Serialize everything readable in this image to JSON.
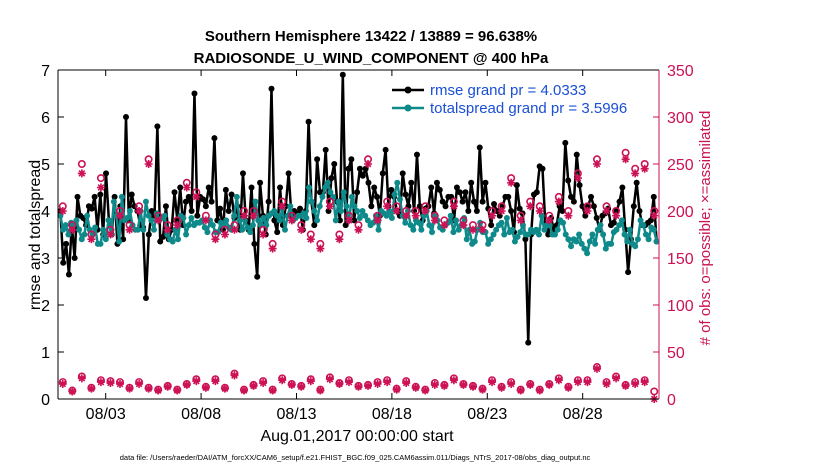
{
  "chart_data": {
    "type": "line",
    "title": "Southern Hemisphere 13422 / 13889 = 96.638%",
    "subtitle": "RADIOSONDE_U_WIND_COMPONENT @ 400 hPa",
    "xlabel": "Aug.01,2017 00:00:00 start",
    "ylabel": "rmse and totalspread",
    "ylabel_right": "# of obs: o=possible; ×=assimilated",
    "xlim": [
      0,
      31.5
    ],
    "ylim": [
      0,
      7
    ],
    "ylim_right": [
      0,
      350
    ],
    "x_ticks": [
      2.5,
      7.5,
      12.5,
      17.5,
      22.5,
      27.5
    ],
    "x_tick_labels": [
      "08/03",
      "08/08",
      "08/13",
      "08/18",
      "08/23",
      "08/28"
    ],
    "y_ticks": [
      0,
      1,
      2,
      3,
      4,
      5,
      6,
      7
    ],
    "y_tick_labels": [
      "0",
      "1",
      "2",
      "3",
      "4",
      "5",
      "6",
      "7"
    ],
    "y_ticks_right": [
      0,
      50,
      100,
      150,
      200,
      250,
      300,
      350
    ],
    "y_tick_labels_right": [
      "0",
      "50",
      "100",
      "150",
      "200",
      "250",
      "300",
      "350"
    ],
    "footnote": "data file: /Users/raeder/DAI/ATM_forcXX/CAM6_setup/f.e21.FHIST_BGC.f09_025.CAM6assim.011/Diags_NTrS_2017-08/obs_diag_output.nc",
    "legend": [
      "rmse grand pr = 4.0333",
      "totalspread grand pr = 3.5996"
    ],
    "legend_position": "top-right",
    "series": [
      {
        "name": "rmse grand pr = 4.0333",
        "color": "#000000",
        "values": [
          4.0,
          2.9,
          3.3,
          2.65,
          3.7,
          3.0,
          4.3,
          3.9,
          3.85,
          3.7,
          4.1,
          4.05,
          4.3,
          3.6,
          4.35,
          3.5,
          4.8,
          3.8,
          3.5,
          4.3,
          3.3,
          4.1,
          3.4,
          6.0,
          3.8,
          4.35,
          4.1,
          4.0,
          3.7,
          3.65,
          2.15,
          3.5,
          4.0,
          3.9,
          5.8,
          3.35,
          3.45,
          4.1,
          3.4,
          3.6,
          4.4,
          3.8,
          4.5,
          3.7,
          4.2,
          4.3,
          4.0,
          6.5,
          3.9,
          4.3,
          4.25,
          4.1,
          4.5,
          4.2,
          5.55,
          3.8,
          4.05,
          3.6,
          4.45,
          4.0,
          4.35,
          3.85,
          4.1,
          3.6,
          4.8,
          3.8,
          3.6,
          4.5,
          3.3,
          2.6,
          4.6,
          3.9,
          3.5,
          4.2,
          6.6,
          3.8,
          3.55,
          4.5,
          3.7,
          4.1,
          4.8,
          3.9,
          4.0,
          3.95,
          4.05,
          3.6,
          4.0,
          5.9,
          4.2,
          3.7,
          5.1,
          4.4,
          4.4,
          5.3,
          4.0,
          4.7,
          5.0,
          4.2,
          3.8,
          6.9,
          3.7,
          4.9,
          5.1,
          3.8,
          4.4,
          4.9,
          4.75,
          4.9,
          4.6,
          4.1,
          4.5,
          4.3,
          3.9,
          4.8,
          5.3,
          4.1,
          4.45,
          4.3,
          4.0,
          3.9,
          4.8,
          4.35,
          4.1,
          4.6,
          4.0,
          5.2,
          4.1,
          3.8,
          4.05,
          4.1,
          4.5,
          3.95,
          4.6,
          4.45,
          4.2,
          4.1,
          4.3,
          4.3,
          3.8,
          4.5,
          4.4,
          4.2,
          4.4,
          4.0,
          4.6,
          4.2,
          4.0,
          5.35,
          4.2,
          4.6,
          4.05,
          3.7,
          4.15,
          4.0,
          3.9,
          4.1,
          4.3,
          4.3,
          4.0,
          3.55,
          4.55,
          4.05,
          3.95,
          3.4,
          1.2,
          3.5,
          4.35,
          4.4,
          4.95,
          4.9,
          3.7,
          3.5,
          3.85,
          3.6,
          3.7,
          4.1,
          4.0,
          5.45,
          4.65,
          4.3,
          4.2,
          5.2,
          4.55,
          4.1,
          3.9,
          4.1,
          4.3,
          4.1,
          3.85,
          3.6,
          3.9,
          3.95,
          4.05,
          3.7,
          3.75,
          4.0,
          4.2,
          4.5,
          3.6,
          2.7,
          3.4,
          4.1,
          4.6,
          4.0,
          3.7,
          3.7,
          3.75,
          3.8,
          4.3,
          3.35
        ],
        "markers": "filled-circle"
      },
      {
        "name": "totalspread grand pr = 3.5996",
        "color": "#0e8a8a",
        "values": [
          3.9,
          3.6,
          3.7,
          3.5,
          3.75,
          3.7,
          3.8,
          3.6,
          3.4,
          3.5,
          3.9,
          3.6,
          3.5,
          3.65,
          3.3,
          3.3,
          3.6,
          3.4,
          3.8,
          3.5,
          4.2,
          3.9,
          3.35,
          4.3,
          3.8,
          3.85,
          4.0,
          3.7,
          3.6,
          3.6,
          4.0,
          3.6,
          4.2,
          3.9,
          3.8,
          3.6,
          3.95,
          3.8,
          3.85,
          3.9,
          3.5,
          3.4,
          3.35,
          3.6,
          3.4,
          3.9,
          3.85,
          3.5,
          3.7,
          3.85,
          3.7,
          3.75,
          3.75,
          3.8,
          3.65,
          3.55,
          3.8,
          3.7,
          3.55,
          3.55,
          3.75,
          3.7,
          3.8,
          3.65,
          3.6,
          3.9,
          4.3,
          3.8,
          3.6,
          3.8,
          3.65,
          3.55,
          3.7,
          4.2,
          3.8,
          3.7,
          3.85,
          3.7,
          3.9,
          3.95,
          4.0,
          3.9,
          3.8,
          4.05,
          3.6,
          3.9,
          4.1,
          3.8,
          3.85,
          3.9,
          3.9,
          3.95,
          3.85,
          4.5,
          4.2,
          4.0,
          3.8,
          4.1,
          4.3,
          4.5,
          4.6,
          4.4,
          4.3,
          3.8,
          4.2,
          4.0,
          4.4,
          4.1,
          3.8,
          4.3,
          4.1,
          4.0,
          3.85,
          4.0,
          3.9,
          3.8,
          3.7,
          3.75,
          3.9,
          3.6,
          4.0,
          3.95,
          3.9,
          4.0,
          3.85,
          4.35,
          4.6,
          4.25,
          3.9,
          3.75,
          4.0,
          3.7,
          3.6,
          3.8,
          3.75,
          3.6,
          3.9,
          4.0,
          3.7,
          3.55,
          3.9,
          3.8,
          3.65,
          3.6,
          3.7,
          3.75,
          3.9,
          3.55,
          3.8,
          3.6,
          3.7,
          3.85,
          3.4,
          3.6,
          3.3,
          3.35,
          3.6,
          3.75,
          3.55,
          3.55,
          3.3,
          3.4,
          3.5,
          3.6,
          3.7,
          3.75,
          3.5,
          3.85,
          3.55,
          3.6,
          3.35,
          3.45,
          3.55,
          3.7,
          3.5,
          3.5,
          3.6,
          3.55,
          3.6,
          3.5,
          3.9,
          3.6,
          3.7,
          3.7,
          3.5,
          3.5,
          3.6,
          3.8,
          3.75,
          3.5,
          3.4,
          3.25,
          3.4,
          3.35,
          3.5,
          3.3,
          3.2,
          3.1,
          3.35,
          3.5,
          3.3,
          3.6,
          3.7,
          3.5,
          3.2,
          3.3,
          3.3,
          3.55,
          3.6,
          3.7,
          3.8,
          3.5,
          3.35,
          3.6,
          3.3,
          3.25,
          3.4,
          3.8,
          3.7,
          3.5,
          3.4,
          3.65,
          3.6,
          3.35
        ],
        "markers": "filled-circle"
      },
      {
        "name": "obs possible",
        "color": "#cc1155",
        "axis": "right",
        "x": [
          0.25,
          0.75,
          1.25,
          1.75,
          2.25,
          2.75,
          3.25,
          3.75,
          4.25,
          4.75,
          5.25,
          5.75,
          6.25,
          6.75,
          7.25,
          7.75,
          8.25,
          8.75,
          9.25,
          9.75,
          10.25,
          10.75,
          11.25,
          11.75,
          12.25,
          12.75,
          13.25,
          13.75,
          14.25,
          14.75,
          15.25,
          15.75,
          16.25,
          16.75,
          17.25,
          17.75,
          18.25,
          18.75,
          19.25,
          19.75,
          20.25,
          20.75,
          21.25,
          21.75,
          22.25,
          22.75,
          23.25,
          23.75,
          24.25,
          24.75,
          25.25,
          25.75,
          26.25,
          26.75,
          27.25,
          27.75,
          28.25,
          28.75,
          29.25,
          29.75,
          30.25,
          30.75,
          31.25
        ],
        "values": [
          205,
          185,
          250,
          175,
          235,
          180,
          200,
          185,
          205,
          255,
          195,
          185,
          190,
          230,
          220,
          195,
          175,
          180,
          185,
          200,
          200,
          180,
          165,
          210,
          195,
          185,
          175,
          165,
          210,
          175,
          195,
          185,
          255,
          195,
          210,
          205,
          200,
          200,
          205,
          195,
          190,
          210,
          190,
          185,
          185,
          200,
          205,
          235,
          195,
          210,
          205,
          195,
          215,
          200,
          240,
          205,
          255,
          205,
          200,
          262,
          245,
          250,
          200
        ],
        "markers": "open-circle"
      },
      {
        "name": "obs assimilated",
        "color": "#cc1155",
        "axis": "right",
        "x": [
          0.25,
          0.75,
          1.25,
          1.75,
          2.25,
          2.75,
          3.25,
          3.75,
          4.25,
          4.75,
          5.25,
          5.75,
          6.25,
          6.75,
          7.25,
          7.75,
          8.25,
          8.75,
          9.25,
          9.75,
          10.25,
          10.75,
          11.25,
          11.75,
          12.25,
          12.75,
          13.25,
          13.75,
          14.25,
          14.75,
          15.25,
          15.75,
          16.25,
          16.75,
          17.25,
          17.75,
          18.25,
          18.75,
          19.25,
          19.75,
          20.25,
          20.75,
          21.25,
          21.75,
          22.25,
          22.75,
          23.25,
          23.75,
          24.25,
          24.75,
          25.25,
          25.75,
          26.25,
          26.75,
          27.25,
          27.75,
          28.25,
          28.75,
          29.25,
          29.75,
          30.25,
          30.75,
          31.25
        ],
        "values": [
          200,
          180,
          240,
          170,
          225,
          175,
          195,
          180,
          200,
          250,
          190,
          180,
          185,
          225,
          215,
          190,
          170,
          175,
          180,
          195,
          195,
          175,
          160,
          205,
          190,
          180,
          170,
          160,
          205,
          170,
          190,
          180,
          250,
          190,
          205,
          200,
          195,
          195,
          200,
          190,
          185,
          205,
          185,
          180,
          180,
          195,
          200,
          230,
          190,
          205,
          200,
          190,
          210,
          195,
          235,
          200,
          250,
          200,
          195,
          255,
          240,
          245,
          195
        ],
        "markers": "asterisk"
      },
      {
        "name": "obs possible (bottom)",
        "color": "#cc1155",
        "axis": "right",
        "x": [
          0.25,
          0.75,
          1.25,
          1.75,
          2.25,
          2.75,
          3.25,
          3.75,
          4.25,
          4.75,
          5.25,
          5.75,
          6.25,
          6.75,
          7.25,
          7.75,
          8.25,
          8.75,
          9.25,
          9.75,
          10.25,
          10.75,
          11.25,
          11.75,
          12.25,
          12.75,
          13.25,
          13.75,
          14.25,
          14.75,
          15.25,
          15.75,
          16.25,
          16.75,
          17.25,
          17.75,
          18.25,
          18.75,
          19.25,
          19.75,
          20.25,
          20.75,
          21.25,
          21.75,
          22.25,
          22.75,
          23.25,
          23.75,
          24.25,
          24.75,
          25.25,
          25.75,
          26.25,
          26.75,
          27.25,
          27.75,
          28.25,
          28.75,
          29.25,
          29.75,
          30.25,
          30.75,
          31.25
        ],
        "values": [
          18,
          9,
          24,
          12,
          20,
          19,
          18,
          12,
          18,
          12,
          10,
          14,
          10,
          16,
          21,
          13,
          21,
          12,
          27,
          10,
          15,
          19,
          10,
          22,
          16,
          14,
          21,
          10,
          23,
          17,
          20,
          14,
          15,
          18,
          20,
          11,
          19,
          13,
          10,
          17,
          15,
          22,
          16,
          14,
          11,
          20,
          13,
          18,
          10,
          16,
          10,
          16,
          22,
          13,
          20,
          20,
          34,
          18,
          24,
          15,
          18,
          20,
          8
        ],
        "markers": "open-circle"
      },
      {
        "name": "obs assimilated (bottom)",
        "color": "#cc1155",
        "axis": "right",
        "x": [
          0.25,
          0.75,
          1.25,
          1.75,
          2.25,
          2.75,
          3.25,
          3.75,
          4.25,
          4.75,
          5.25,
          5.75,
          6.25,
          6.75,
          7.25,
          7.75,
          8.25,
          8.75,
          9.25,
          9.75,
          10.25,
          10.75,
          11.25,
          11.75,
          12.25,
          12.75,
          13.25,
          13.75,
          14.25,
          14.75,
          15.25,
          15.75,
          16.25,
          16.75,
          17.25,
          17.75,
          18.25,
          18.75,
          19.25,
          19.75,
          20.25,
          20.75,
          21.25,
          21.75,
          22.25,
          22.75,
          23.25,
          23.75,
          24.25,
          24.75,
          25.25,
          25.75,
          26.25,
          26.75,
          27.25,
          27.75,
          28.25,
          28.75,
          29.25,
          29.75,
          30.25,
          30.75,
          31.25
        ],
        "values": [
          16,
          8,
          22,
          11,
          18,
          17,
          16,
          11,
          16,
          11,
          9,
          13,
          9,
          15,
          19,
          12,
          19,
          11,
          25,
          9,
          14,
          17,
          9,
          20,
          15,
          13,
          19,
          9,
          21,
          16,
          18,
          13,
          14,
          16,
          18,
          10,
          17,
          12,
          9,
          15,
          14,
          20,
          15,
          13,
          10,
          18,
          12,
          16,
          9,
          15,
          9,
          15,
          20,
          12,
          18,
          18,
          32,
          16,
          22,
          14,
          16,
          18,
          0
        ],
        "markers": "asterisk"
      }
    ]
  }
}
